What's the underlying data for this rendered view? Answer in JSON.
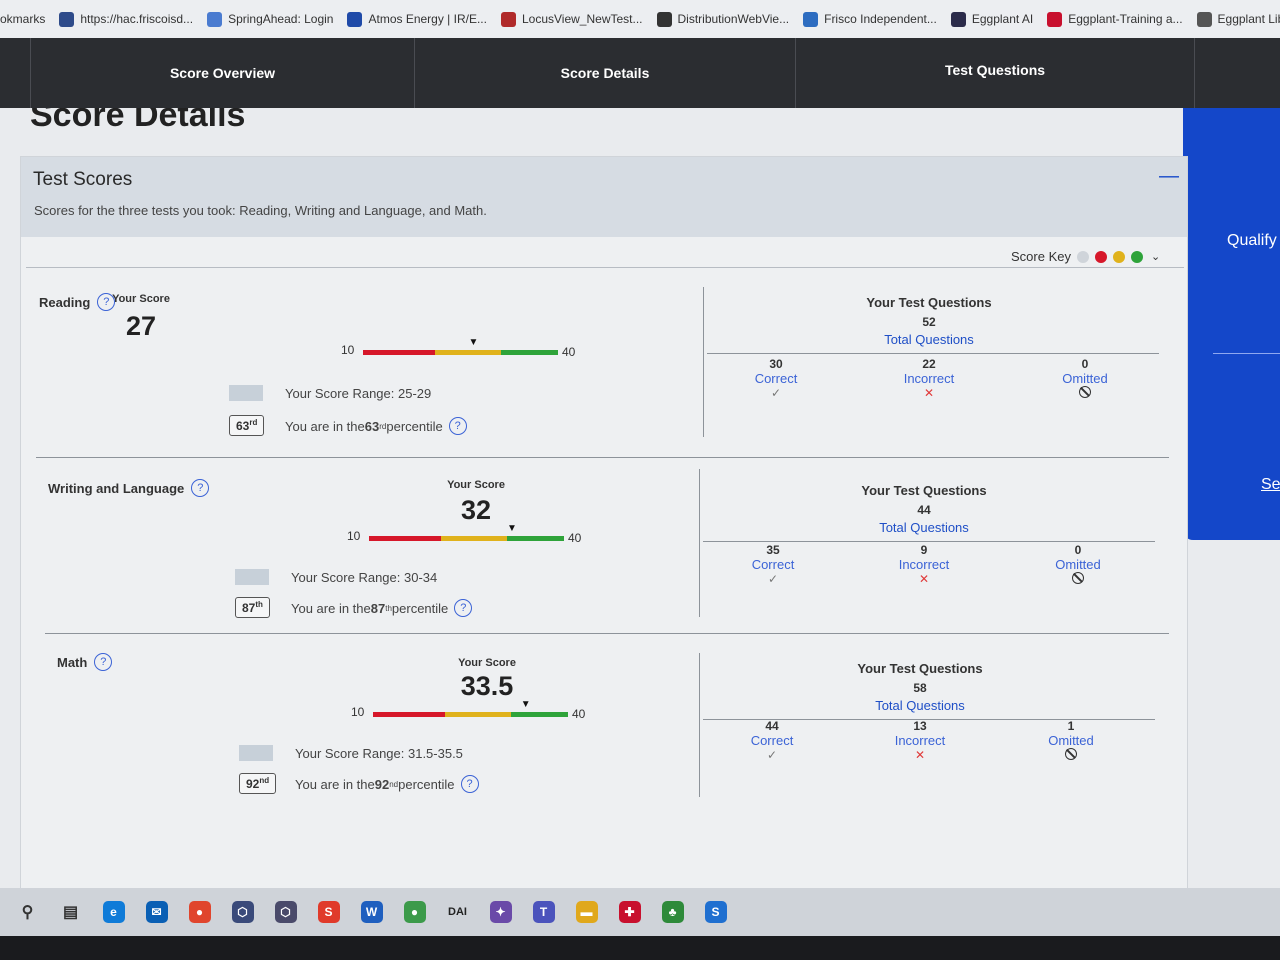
{
  "bookmarks": [
    {
      "label": "okmarks",
      "icon": "bookmarks-icon",
      "color": "#eceef1"
    },
    {
      "label": "https://hac.friscoisd...",
      "icon": "hac-icon",
      "color": "#2e4b8a"
    },
    {
      "label": "SpringAhead: Login",
      "icon": "grid-icon",
      "color": "#4a7bd0"
    },
    {
      "label": "Atmos Energy | IR/E...",
      "icon": "atmos-icon",
      "color": "#1f4aa8"
    },
    {
      "label": "LocusView_NewTest...",
      "icon": "locusview-icon",
      "color": "#b02a2a"
    },
    {
      "label": "DistributionWebVie...",
      "icon": "globe-icon",
      "color": "#333333"
    },
    {
      "label": "Frisco Independent...",
      "icon": "frisco-icon",
      "color": "#2d6cc0"
    },
    {
      "label": "Eggplant AI",
      "icon": "eggplant-ai-icon",
      "color": "#2b2b4a"
    },
    {
      "label": "Eggplant-Training a...",
      "icon": "eggplant-training-icon",
      "color": "#c8102e"
    },
    {
      "label": "Eggplant Library-D...",
      "icon": "eggplant-library-icon",
      "color": "#555555"
    }
  ],
  "nav": {
    "tabs": [
      "Score Overview",
      "Score Details",
      "Test Questions"
    ]
  },
  "page": {
    "title": "Score Details",
    "side_panel": {
      "qualify": "Qualify f",
      "link": "Se"
    }
  },
  "card": {
    "title": "Test Scores",
    "subtitle": "Scores for the three tests you took: Reading, Writing and Language, and Math.",
    "collapse": "—",
    "score_key_label": "Score Key",
    "score_key_colors": [
      "#cfd4da",
      "#d6172a",
      "#e0b21c",
      "#2ea33a"
    ]
  },
  "labels": {
    "your_score": "Your Score",
    "scale_min": "10",
    "scale_max": "40",
    "your_test_questions": "Your Test Questions",
    "total_questions": "Total Questions",
    "correct": "Correct",
    "incorrect": "Incorrect",
    "omitted": "Omitted",
    "range_prefix": "Your Score Range: ",
    "percentile_prefix": "You are in the ",
    "percentile_suffix": " percentile",
    "help": "?"
  },
  "sections": [
    {
      "name": "Reading",
      "score": "27",
      "score_value": 27,
      "range": "25-29",
      "percentile": "63",
      "percentile_sup": "rd",
      "total": "52",
      "correct": "30",
      "incorrect": "22",
      "omitted": "0"
    },
    {
      "name": "Writing and Language",
      "score": "32",
      "score_value": 32,
      "range": "30-34",
      "percentile": "87",
      "percentile_sup": "th",
      "total": "44",
      "correct": "35",
      "incorrect": "9",
      "omitted": "0"
    },
    {
      "name": "Math",
      "score": "33.5",
      "score_value": 33.5,
      "range": "31.5-35.5",
      "percentile": "92",
      "percentile_sup": "nd",
      "total": "58",
      "correct": "44",
      "incorrect": "13",
      "omitted": "1"
    }
  ],
  "taskbar": [
    {
      "icon": "search-icon",
      "color": "#333333",
      "glyph": "⚲"
    },
    {
      "icon": "task-view-icon",
      "color": "#333333",
      "glyph": "▤"
    },
    {
      "icon": "edge-icon",
      "color": "#0f7bd8",
      "glyph": "e"
    },
    {
      "icon": "outlook-icon",
      "color": "#0a5fb4",
      "glyph": "✉"
    },
    {
      "icon": "chrome-icon",
      "color": "#e0452d",
      "glyph": "●"
    },
    {
      "icon": "app-hex-icon",
      "color": "#3a4a7a",
      "glyph": "⬡"
    },
    {
      "icon": "app-hex2-icon",
      "color": "#4a4a6a",
      "glyph": "⬡"
    },
    {
      "icon": "s-app-icon",
      "color": "#e03a2a",
      "glyph": "S"
    },
    {
      "icon": "word-icon",
      "color": "#1f5fbf",
      "glyph": "W"
    },
    {
      "icon": "chrome-active-icon",
      "color": "#3c9a4a",
      "glyph": "●"
    },
    {
      "icon": "dai-icon",
      "color": "#222222",
      "glyph": "DAI"
    },
    {
      "icon": "gear-app-icon",
      "color": "#6a4aa8",
      "glyph": "✦"
    },
    {
      "icon": "teams-icon",
      "color": "#4b53bc",
      "glyph": "T"
    },
    {
      "icon": "folder-icon",
      "color": "#e0a81c",
      "glyph": "▬"
    },
    {
      "icon": "target-icon",
      "color": "#c8102e",
      "glyph": "✚"
    },
    {
      "icon": "tree-icon",
      "color": "#2e8a3a",
      "glyph": "♣"
    },
    {
      "icon": "s-blue-icon",
      "color": "#1f6fd0",
      "glyph": "S"
    }
  ]
}
